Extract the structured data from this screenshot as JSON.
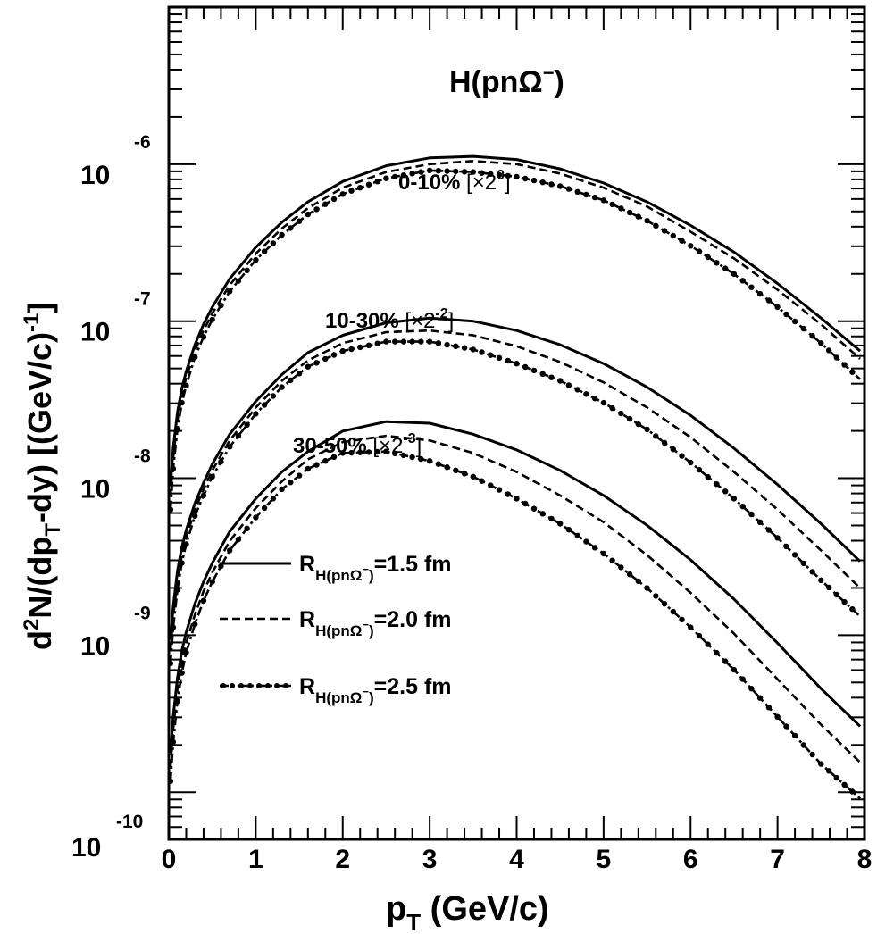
{
  "chart_data": {
    "type": "line",
    "title": "H(pnΩ⁻)",
    "title_parts": {
      "base": "H(pnΩ",
      "sup": "−",
      "close": ")"
    },
    "xlabel": {
      "main": "p",
      "sub": "T",
      "rest": "  (GeV/c)"
    },
    "ylabel": {
      "a": "d",
      "a_sup": "2",
      "b": "N/(dp",
      "b_sub": "T",
      "c": "-dy)  [(GeV/c)",
      "c_sup": "-1",
      "d": "]"
    },
    "xlim": [
      0,
      8
    ],
    "ylim_log10": [
      -10.3,
      -5.0
    ],
    "yscale": "log",
    "x_ticks": [
      "0",
      "1",
      "2",
      "3",
      "4",
      "5",
      "6",
      "7",
      "8"
    ],
    "y_ticks": [
      {
        "exp": -6,
        "base": "10",
        "sup": "-6"
      },
      {
        "exp": -7,
        "base": "10",
        "sup": "-7"
      },
      {
        "exp": -8,
        "base": "10",
        "sup": "-8"
      },
      {
        "exp": -9,
        "base": "10",
        "sup": "-9"
      },
      {
        "exp": -10,
        "base": "10",
        "sup": "-10"
      }
    ],
    "x": [
      0.02,
      0.05,
      0.1,
      0.15,
      0.2,
      0.3,
      0.4,
      0.5,
      0.7,
      1.0,
      1.3,
      1.6,
      2.0,
      2.5,
      3.0,
      3.5,
      4.0,
      4.5,
      5.0,
      5.5,
      6.0,
      6.5,
      7.0,
      7.5,
      7.95
    ],
    "groups": [
      {
        "label": "0-10%",
        "factor_base": "[×2",
        "factor_sup": "0",
        "series": [
          {
            "name": "R=1.5 fm",
            "style": "solid",
            "log10y": [
              -8.05,
              -7.81,
              -7.58,
              -7.43,
              -7.32,
              -7.15,
              -7.02,
              -6.91,
              -6.73,
              -6.53,
              -6.37,
              -6.24,
              -6.11,
              -6.01,
              -5.96,
              -5.95,
              -5.97,
              -6.03,
              -6.12,
              -6.24,
              -6.39,
              -6.56,
              -6.76,
              -6.98,
              -7.19
            ]
          },
          {
            "name": "R=2.0 fm",
            "style": "dashed",
            "log10y": [
              -8.12,
              -7.87,
              -7.63,
              -7.47,
              -7.36,
              -7.19,
              -7.06,
              -6.95,
              -6.77,
              -6.57,
              -6.41,
              -6.28,
              -6.15,
              -6.05,
              -6.0,
              -5.98,
              -6.0,
              -6.06,
              -6.15,
              -6.27,
              -6.43,
              -6.6,
              -6.8,
              -7.02,
              -7.24
            ]
          },
          {
            "name": "R=2.5 fm",
            "style": "dotdash",
            "log10y": [
              -8.2,
              -7.94,
              -7.69,
              -7.52,
              -7.41,
              -7.23,
              -7.1,
              -6.99,
              -6.81,
              -6.61,
              -6.45,
              -6.32,
              -6.19,
              -6.09,
              -6.04,
              -6.05,
              -6.08,
              -6.14,
              -6.23,
              -6.36,
              -6.52,
              -6.7,
              -6.91,
              -7.14,
              -7.37
            ]
          }
        ]
      },
      {
        "label": "10-30%",
        "factor_base": "[×2",
        "factor_sup": "-2",
        "series": [
          {
            "name": "R=1.5 fm",
            "style": "solid",
            "log10y": [
              -9.03,
              -8.82,
              -8.59,
              -8.44,
              -8.33,
              -8.16,
              -8.03,
              -7.91,
              -7.72,
              -7.51,
              -7.34,
              -7.2,
              -7.09,
              -7.01,
              -6.98,
              -7.0,
              -7.06,
              -7.15,
              -7.27,
              -7.42,
              -7.6,
              -7.81,
              -8.04,
              -8.29,
              -8.53
            ]
          },
          {
            "name": "R=2.0 fm",
            "style": "dashed",
            "log10y": [
              -9.1,
              -8.88,
              -8.65,
              -8.49,
              -8.38,
              -8.2,
              -8.07,
              -7.95,
              -7.76,
              -7.55,
              -7.38,
              -7.25,
              -7.14,
              -7.07,
              -7.06,
              -7.09,
              -7.16,
              -7.26,
              -7.39,
              -7.55,
              -7.74,
              -7.96,
              -8.2,
              -8.46,
              -8.7
            ]
          },
          {
            "name": "R=2.5 fm",
            "style": "dotdash",
            "log10y": [
              -9.18,
              -8.95,
              -8.71,
              -8.54,
              -8.42,
              -8.24,
              -8.11,
              -7.99,
              -7.8,
              -7.59,
              -7.42,
              -7.29,
              -7.19,
              -7.13,
              -7.13,
              -7.18,
              -7.27,
              -7.38,
              -7.52,
              -7.69,
              -7.9,
              -8.13,
              -8.38,
              -8.65,
              -8.88
            ]
          }
        ]
      },
      {
        "label": "30-50%",
        "factor_base": "[×2",
        "factor_sup": "-3",
        "series": [
          {
            "name": "R=1.5 fm",
            "style": "solid",
            "log10y": [
              -9.75,
              -9.52,
              -9.27,
              -9.1,
              -8.98,
              -8.8,
              -8.66,
              -8.54,
              -8.34,
              -8.13,
              -7.96,
              -7.83,
              -7.7,
              -7.64,
              -7.65,
              -7.72,
              -7.82,
              -7.95,
              -8.11,
              -8.3,
              -8.52,
              -8.77,
              -9.05,
              -9.34,
              -9.58
            ]
          },
          {
            "name": "R=2.0 fm",
            "style": "dashed",
            "log10y": [
              -9.84,
              -9.6,
              -9.34,
              -9.17,
              -9.05,
              -8.87,
              -8.72,
              -8.6,
              -8.4,
              -8.19,
              -8.02,
              -7.88,
              -7.77,
              -7.73,
              -7.76,
              -7.84,
              -7.96,
              -8.11,
              -8.28,
              -8.49,
              -8.73,
              -8.99,
              -9.28,
              -9.57,
              -9.81
            ]
          },
          {
            "name": "R=2.5 fm",
            "style": "dotdash",
            "log10y": [
              -9.93,
              -9.68,
              -9.42,
              -9.24,
              -9.11,
              -8.93,
              -8.78,
              -8.66,
              -8.46,
              -8.25,
              -8.07,
              -7.94,
              -7.84,
              -7.83,
              -7.89,
              -7.99,
              -8.13,
              -8.29,
              -8.48,
              -8.7,
              -8.95,
              -9.22,
              -9.52,
              -9.82,
              -10.04
            ]
          }
        ]
      }
    ],
    "legend": [
      {
        "style": "solid",
        "main": "R",
        "sub": "H(pnΩ",
        "sub_sup": "−",
        "sub_close": ")",
        "value": "=1.5 fm"
      },
      {
        "style": "dashed",
        "main": "R",
        "sub": "H(pnΩ",
        "sub_sup": "−",
        "sub_close": ")",
        "value": "=2.0 fm"
      },
      {
        "style": "dotdash",
        "main": "R",
        "sub": "H(pnΩ",
        "sub_sup": "−",
        "sub_close": ")",
        "value": "=2.5 fm"
      }
    ],
    "legend_placement": "left-lower",
    "grid": false
  }
}
